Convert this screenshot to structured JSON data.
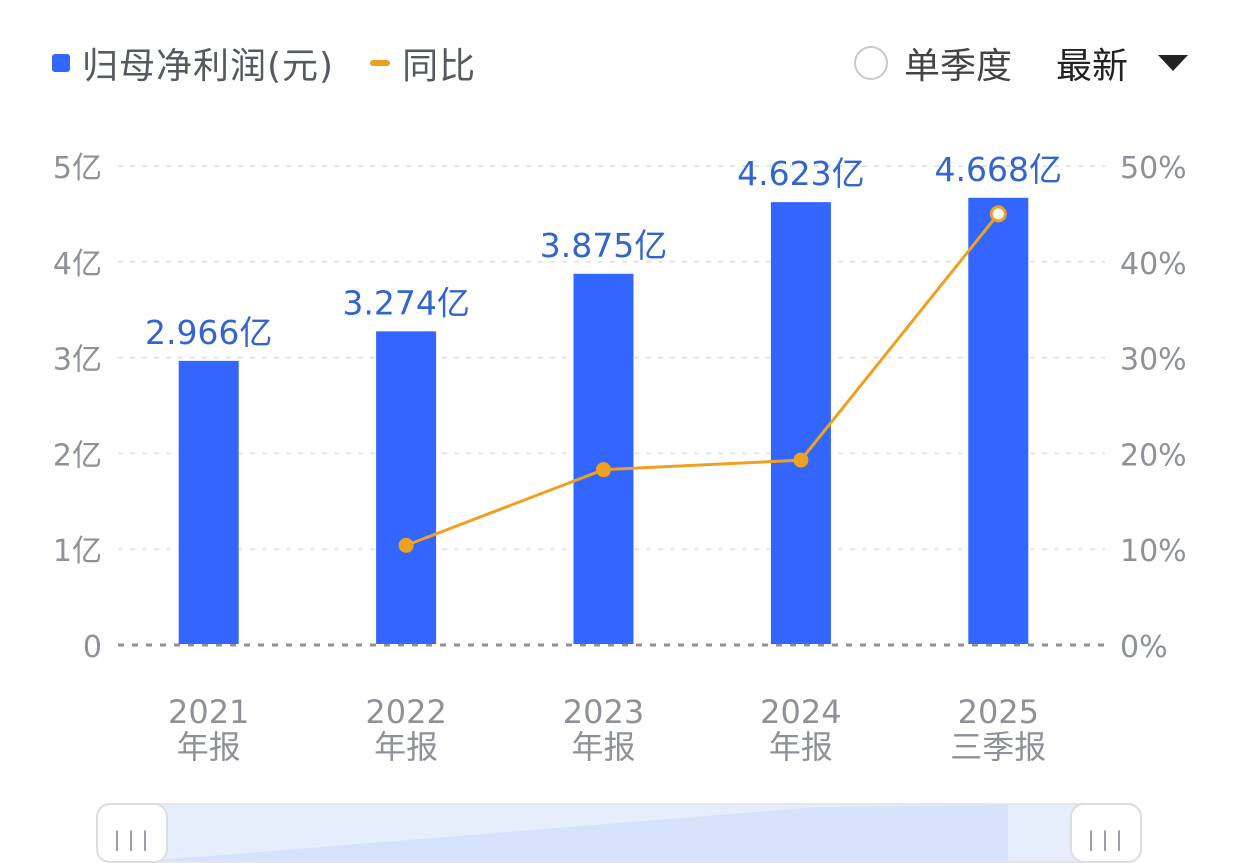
{
  "legend": {
    "bar_label": "归母净利润(元)",
    "line_label": "同比"
  },
  "controls": {
    "radio_label": "单季度",
    "sort_label": "最新"
  },
  "colors": {
    "bar": "#3366FF",
    "line": "#F0A020",
    "grid": "#E3E5E8",
    "axis_text": "#8E9298",
    "value_label": "#3366CC"
  },
  "chart_data": {
    "type": "bar",
    "categories": [
      [
        "2021",
        "年报"
      ],
      [
        "2022",
        "年报"
      ],
      [
        "2023",
        "年报"
      ],
      [
        "2024",
        "年报"
      ],
      [
        "2025",
        "三季报"
      ]
    ],
    "series": [
      {
        "name": "归母净利润(元)",
        "type": "bar",
        "axis": "left",
        "values": [
          2.966,
          3.274,
          3.875,
          4.623,
          4.668
        ],
        "value_labels": [
          "2.966亿",
          "3.274亿",
          "3.875亿",
          "4.623亿",
          "4.668亿"
        ]
      },
      {
        "name": "同比",
        "type": "line",
        "axis": "right",
        "values": [
          null,
          10.4,
          18.3,
          19.3,
          45.0
        ]
      }
    ],
    "y_left": {
      "ticks": [
        "0",
        "1亿",
        "2亿",
        "3亿",
        "4亿",
        "5亿"
      ],
      "range": [
        0,
        5
      ]
    },
    "y_right": {
      "ticks": [
        "0%",
        "10%",
        "20%",
        "30%",
        "40%",
        "50%"
      ],
      "range": [
        0,
        50
      ]
    },
    "grid": true
  }
}
